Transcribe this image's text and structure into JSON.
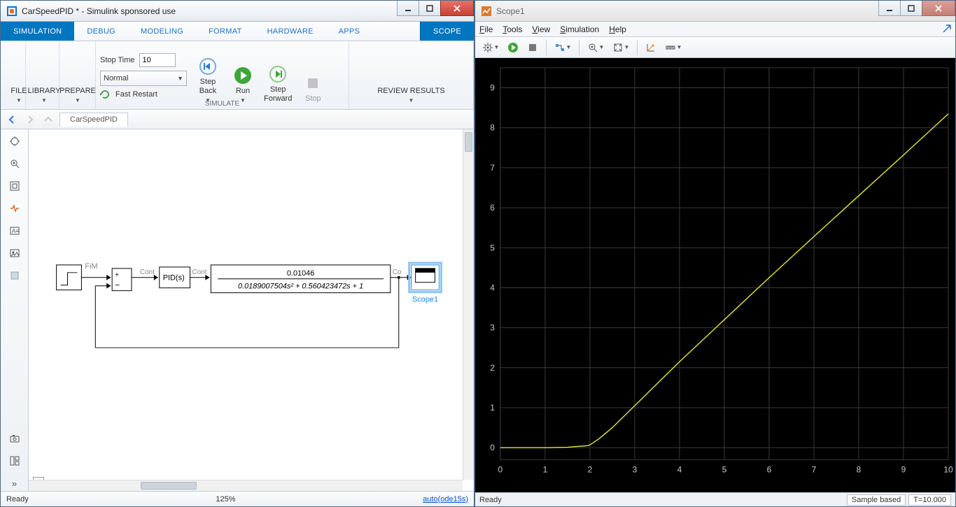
{
  "simulink": {
    "title": "CarSpeedPID * - Simulink sponsored use",
    "tabs": [
      "SIMULATION",
      "DEBUG",
      "MODELING",
      "FORMAT",
      "HARDWARE",
      "APPS",
      "SCOPE"
    ],
    "active_tab": 0,
    "file_label": "FILE",
    "library_label": "LIBRARY",
    "prepare_label": "PREPARE",
    "stop_time_label": "Stop Time",
    "stop_time_value": "10",
    "mode_value": "Normal",
    "fast_restart_label": "Fast Restart",
    "simulate_group": "SIMULATE",
    "step_back_label": "Step\nBack",
    "run_label": "Run",
    "step_fwd_label": "Step\nForward",
    "stop_label": "Stop",
    "review_label": "REVIEW RESULTS",
    "breadcrumb": "CarSpeedPID",
    "status_left": "Ready",
    "status_center": "125%",
    "status_right": "auto(ode15s)",
    "diagram": {
      "step_label": "FiM",
      "sum_plus": "+",
      "sum_minus": "−",
      "cont_label": "Cont",
      "pid_label": "PID(s)",
      "tf_num": "0.01046",
      "tf_den": "0.0189007504s² + 0.560423472s + 1",
      "scope_label": "Scope1"
    }
  },
  "scope": {
    "title": "Scope1",
    "menus": [
      "File",
      "Tools",
      "View",
      "Simulation",
      "Help"
    ],
    "status_left": "Ready",
    "status_sample": "Sample based",
    "status_time": "T=10.000",
    "plot": {
      "xlim": [
        0,
        10
      ],
      "ylim": [
        -0.3,
        9.5
      ],
      "xtick_step": 1,
      "ytick_step": 1,
      "background_color": "#000000",
      "grid_color": "#3a3a3a",
      "axis_color": "#c8c8c8",
      "line_color": "#e6e62a",
      "tick_labels_x": [
        "0",
        "1",
        "2",
        "3",
        "4",
        "5",
        "6",
        "7",
        "8",
        "9",
        "10"
      ],
      "tick_labels_y": [
        "0",
        "1",
        "2",
        "3",
        "4",
        "5",
        "6",
        "7",
        "8",
        "9"
      ],
      "series": [
        {
          "x": 0,
          "y": 0
        },
        {
          "x": 1.0,
          "y": 0.0
        },
        {
          "x": 1.5,
          "y": 0.01
        },
        {
          "x": 1.95,
          "y": 0.05
        },
        {
          "x": 2.0,
          "y": 0.07
        },
        {
          "x": 2.2,
          "y": 0.22
        },
        {
          "x": 2.5,
          "y": 0.5
        },
        {
          "x": 3.0,
          "y": 1.05
        },
        {
          "x": 3.5,
          "y": 1.6
        },
        {
          "x": 4.0,
          "y": 2.15
        },
        {
          "x": 5.0,
          "y": 3.2
        },
        {
          "x": 6.0,
          "y": 4.25
        },
        {
          "x": 7.0,
          "y": 5.28
        },
        {
          "x": 8.0,
          "y": 6.3
        },
        {
          "x": 9.0,
          "y": 7.32
        },
        {
          "x": 10.0,
          "y": 8.35
        }
      ]
    }
  },
  "colors": {
    "accent": "#0076c0",
    "run_green": "#3da639",
    "link_blue": "#0b57d0"
  }
}
